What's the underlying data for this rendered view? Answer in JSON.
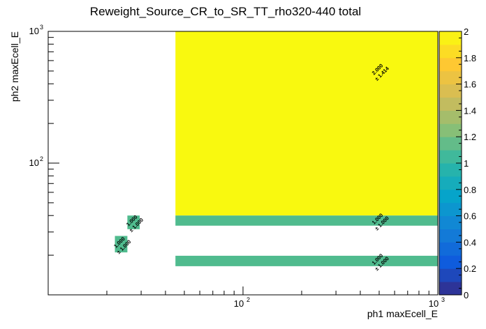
{
  "chart_data": {
    "type": "heatmap",
    "title": "Reweight_Source_CR_to_SR_TT_rho320-440 total",
    "xlabel": "ph1 maxEcell_E",
    "ylabel": "ph2 maxEcell_E",
    "x_scale": "log",
    "y_scale": "log",
    "xlim": [
      10,
      1000
    ],
    "ylim": [
      10,
      1000
    ],
    "x_major_ticks": [
      {
        "value": 100,
        "base": "10",
        "exp": "2"
      },
      {
        "value": 1000,
        "base": "10",
        "exp": "3"
      }
    ],
    "y_major_ticks": [
      {
        "value": 100,
        "base": "10",
        "exp": "2"
      },
      {
        "value": 1000,
        "base": "10",
        "exp": "3"
      }
    ],
    "zlim": [
      0,
      2
    ],
    "colorbar_ticks": [
      "0",
      "0.2",
      "0.4",
      "0.6",
      "0.8",
      "1",
      "1.2",
      "1.4",
      "1.6",
      "1.8",
      "2"
    ],
    "cells": [
      {
        "x": [
          45,
          1000
        ],
        "y": [
          40,
          1000
        ],
        "value": 2.0,
        "label": "2.000",
        "error": "± 1.414",
        "color": "#f9f90f"
      },
      {
        "x": [
          45,
          1000
        ],
        "y": [
          33.5,
          40
        ],
        "value": 1.0,
        "label": "1.000",
        "error": "± 1.000",
        "color": "#50bb8e"
      },
      {
        "x": [
          45,
          1000
        ],
        "y": [
          16.5,
          19.8
        ],
        "value": 1.0,
        "label": "1.000",
        "error": "± 1.000",
        "color": "#50bb8e"
      },
      {
        "x": [
          22,
          25.5
        ],
        "y": [
          21,
          28
        ],
        "value": 1.0,
        "label": "1.000",
        "error": "± 1.000",
        "color": "#50bb8e"
      },
      {
        "x": [
          25.5,
          29.5
        ],
        "y": [
          31.5,
          40
        ],
        "value": 1.0,
        "label": "1.000",
        "error": "± 1.000",
        "color": "#50bb8e"
      }
    ]
  }
}
